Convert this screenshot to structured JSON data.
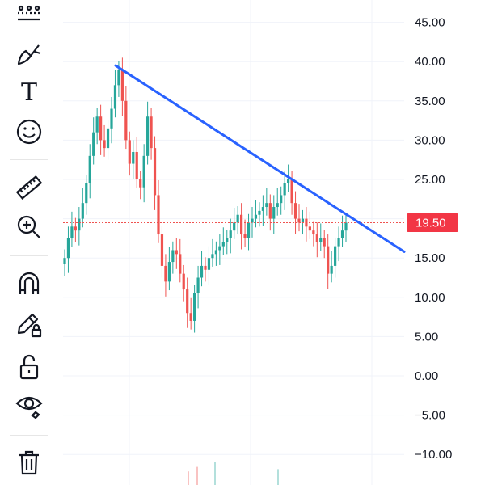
{
  "toolbar": {
    "tools": [
      {
        "name": "pattern-tool-icon"
      },
      {
        "name": "brush-tool-icon"
      },
      {
        "name": "text-tool-icon",
        "glyph": "T"
      },
      {
        "name": "emoji-tool-icon"
      },
      {
        "name": "ruler-tool-icon"
      },
      {
        "name": "zoom-in-tool-icon"
      },
      {
        "name": "magnet-tool-icon"
      },
      {
        "name": "lock-drawings-icon"
      },
      {
        "name": "unlock-icon"
      },
      {
        "name": "eye-visibility-icon"
      },
      {
        "name": "trash-icon"
      }
    ]
  },
  "chart_data": {
    "type": "line",
    "title": "",
    "xlabel": "",
    "ylabel": "",
    "ylim": [
      -12,
      50
    ],
    "y_ticks": [
      "45.00",
      "40.00",
      "35.00",
      "30.00",
      "25.00",
      "20.00",
      "15.00",
      "10.00",
      "5.00",
      "0.00",
      "−5.00",
      "−10.00"
    ],
    "y_tick_values": [
      45,
      40,
      35,
      30,
      25,
      20,
      15,
      10,
      5,
      0,
      -5,
      -10
    ],
    "last_price": 19.5,
    "last_price_label": "19.50",
    "trendline": {
      "start_y": 39.5,
      "end_y": 15.8
    },
    "series": [
      {
        "values": [
          15.0,
          17.5,
          19.0,
          18.5,
          20.0,
          22.0,
          24.5,
          28.0,
          31.0,
          33.0,
          30.0,
          29.0,
          31.5,
          34.0,
          37.0,
          39.0,
          35.0,
          30.0,
          27.0,
          28.5,
          25.0,
          24.0,
          28.0,
          33.0,
          29.0,
          23.0,
          18.0,
          14.0,
          12.0,
          14.5,
          16.0,
          15.5,
          13.0,
          11.0,
          8.0,
          7.0,
          10.5,
          12.5,
          14.0,
          13.5,
          15.0,
          15.5,
          16.0,
          16.5,
          17.0,
          17.5,
          18.5,
          19.5,
          20.5,
          18.0,
          17.5,
          19.5,
          20.0,
          20.5,
          21.0,
          21.5,
          22.0,
          20.0,
          21.5,
          22.0,
          23.0,
          24.5,
          25.0,
          22.0,
          20.0,
          19.5,
          20.0,
          19.0,
          18.5,
          18.0,
          17.0,
          17.5,
          16.5,
          13.0,
          14.0,
          16.5,
          17.5,
          18.5,
          19.5
        ]
      }
    ]
  }
}
